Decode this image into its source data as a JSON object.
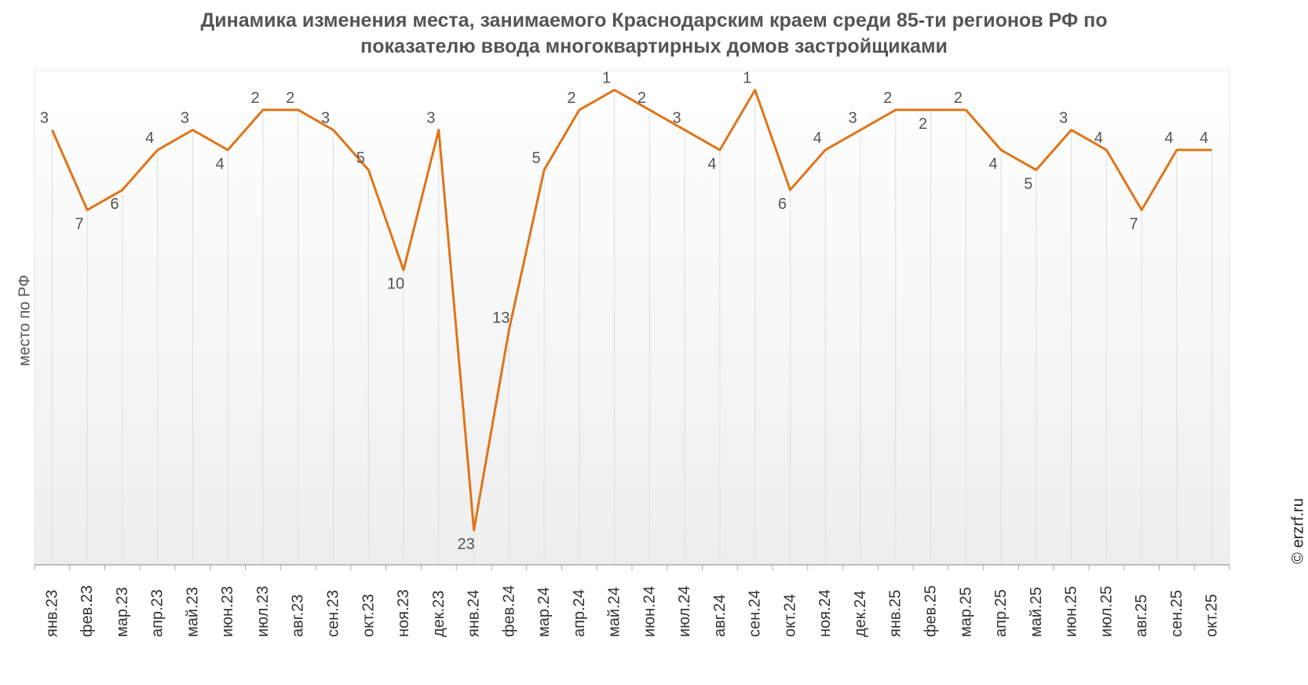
{
  "title_line1": "Динамика изменения места, занимаемого Краснодарским краем среди 85-ти регионов РФ по",
  "title_line2": "показателю ввода многоквартирных домов застройщиками",
  "credit": "© erzrf.ru",
  "colors": {
    "line": "#E07418",
    "label": "#555555",
    "grid": "#dddddd",
    "axis": "#aaaaaa",
    "plot_bg_top": "#ffffff",
    "plot_bg_bottom": "#eeeeee"
  },
  "chart_data": {
    "type": "line",
    "title": "Динамика изменения места, занимаемого Краснодарским краем среди 85-ти регионов РФ по показателю ввода многоквартирных домов застройщиками",
    "xlabel": "",
    "ylabel": "место по РФ",
    "y_reversed": true,
    "ylim": [
      0,
      24
    ],
    "grid": "vertical",
    "categories": [
      "янв.23",
      "фев.23",
      "мар.23",
      "апр.23",
      "май.23",
      "июн.23",
      "июл.23",
      "авг.23",
      "сен.23",
      "окт.23",
      "ноя.23",
      "дек.23",
      "янв.24",
      "фев.24",
      "мар.24",
      "апр.24",
      "май.24",
      "июн.24",
      "июл.24",
      "авг.24",
      "сен.24",
      "окт.24",
      "ноя.24",
      "дек.24",
      "янв.25",
      "фев.25",
      "мар.25",
      "апр.25",
      "май.25",
      "июн.25",
      "июл.25",
      "авг.25",
      "сен.25",
      "окт.25"
    ],
    "series": [
      {
        "values": [
          3,
          7,
          6,
          4,
          3,
          4,
          2,
          2,
          3,
          5,
          10,
          3,
          23,
          13,
          5,
          2,
          1,
          2,
          3,
          4,
          1,
          6,
          4,
          3,
          2,
          2,
          2,
          4,
          5,
          3,
          4,
          7,
          4,
          4
        ]
      }
    ]
  }
}
